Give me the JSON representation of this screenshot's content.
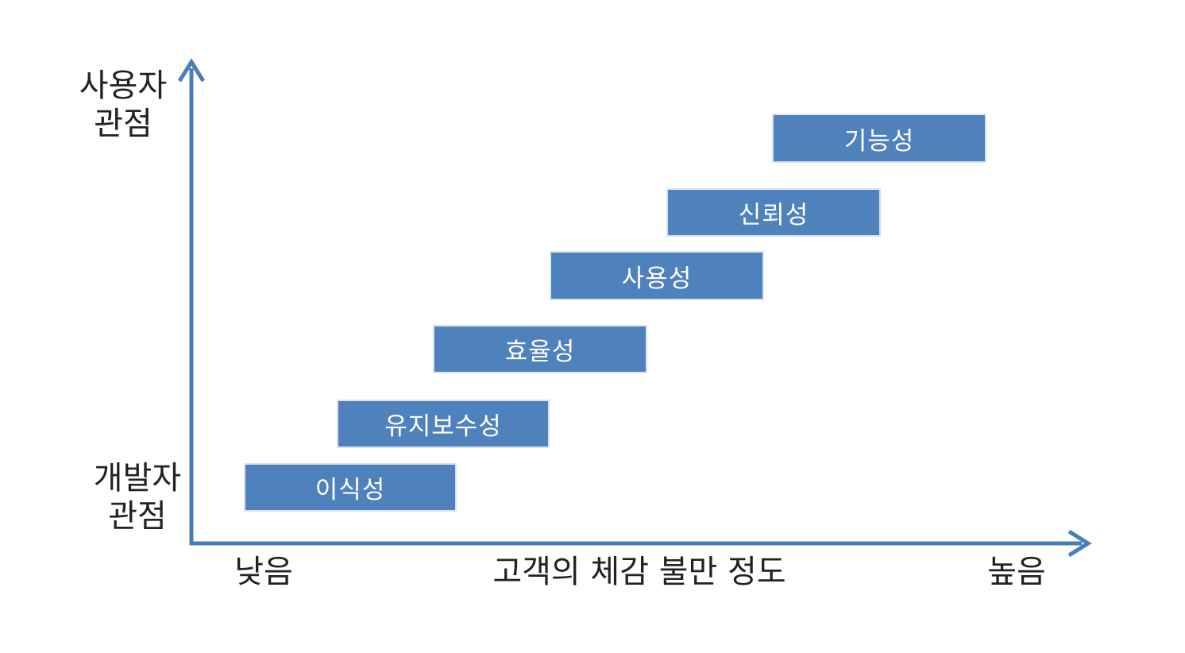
{
  "colors": {
    "axis": "#4a7ebb",
    "bar_fill": "#4f81bd",
    "bar_text": "#ffffff",
    "label_text": "#222222"
  },
  "y_axis": {
    "top_label_line1": "사용자",
    "top_label_line2": "관점",
    "bottom_label_line1": "개발자",
    "bottom_label_line2": "관점"
  },
  "x_axis": {
    "left_label": "낮음",
    "center_label": "고객의 체감 불만 정도",
    "right_label": "높음"
  },
  "bars": [
    {
      "label": "이식성"
    },
    {
      "label": "유지보수성"
    },
    {
      "label": "효율성"
    },
    {
      "label": "사용성"
    },
    {
      "label": "신뢰성"
    },
    {
      "label": "기능성"
    }
  ]
}
